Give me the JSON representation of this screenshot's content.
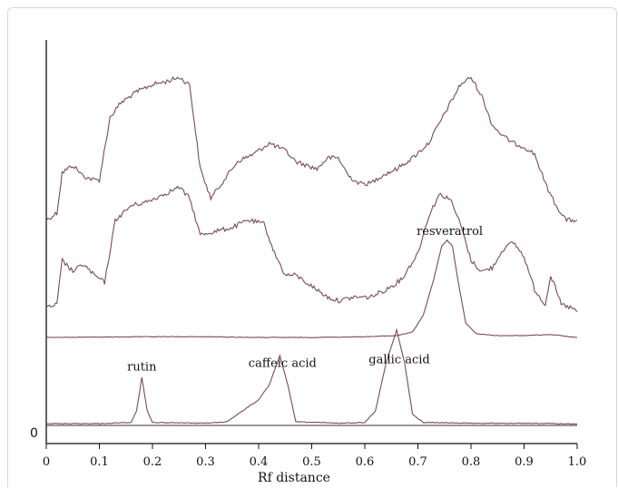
{
  "chart_data": {
    "type": "line",
    "xlabel": "Rf distance",
    "ylabel": "",
    "xlim": [
      0,
      1.0
    ],
    "x_ticks": [
      "0",
      "0.1",
      "0.2",
      "0.3",
      "0.4",
      "0.5",
      "0.6",
      "0.7",
      "0.8",
      "0.9",
      "1.0"
    ],
    "y_origin_label": "0",
    "grid": false,
    "line_color": "#7a4a58",
    "series": [
      {
        "points": [
          [
            0.0,
            0.56
          ],
          [
            0.02,
            0.58
          ],
          [
            0.03,
            0.69
          ],
          [
            0.05,
            0.71
          ],
          [
            0.07,
            0.68
          ],
          [
            0.09,
            0.67
          ],
          [
            0.1,
            0.67
          ],
          [
            0.12,
            0.84
          ],
          [
            0.14,
            0.88
          ],
          [
            0.17,
            0.91
          ],
          [
            0.2,
            0.93
          ],
          [
            0.23,
            0.94
          ],
          [
            0.25,
            0.95
          ],
          [
            0.27,
            0.93
          ],
          [
            0.29,
            0.7
          ],
          [
            0.31,
            0.62
          ],
          [
            0.33,
            0.66
          ],
          [
            0.36,
            0.72
          ],
          [
            0.39,
            0.74
          ],
          [
            0.42,
            0.77
          ],
          [
            0.45,
            0.75
          ],
          [
            0.47,
            0.72
          ],
          [
            0.49,
            0.71
          ],
          [
            0.51,
            0.7
          ],
          [
            0.53,
            0.73
          ],
          [
            0.55,
            0.73
          ],
          [
            0.57,
            0.68
          ],
          [
            0.59,
            0.66
          ],
          [
            0.61,
            0.66
          ],
          [
            0.63,
            0.68
          ],
          [
            0.66,
            0.7
          ],
          [
            0.69,
            0.73
          ],
          [
            0.72,
            0.77
          ],
          [
            0.75,
            0.85
          ],
          [
            0.78,
            0.93
          ],
          [
            0.8,
            0.95
          ],
          [
            0.82,
            0.9
          ],
          [
            0.84,
            0.82
          ],
          [
            0.86,
            0.79
          ],
          [
            0.88,
            0.77
          ],
          [
            0.9,
            0.76
          ],
          [
            0.92,
            0.74
          ],
          [
            0.94,
            0.66
          ],
          [
            0.96,
            0.6
          ],
          [
            0.98,
            0.56
          ],
          [
            1.0,
            0.56
          ]
        ]
      },
      {
        "points": [
          [
            0.0,
            0.32
          ],
          [
            0.02,
            0.33
          ],
          [
            0.03,
            0.45
          ],
          [
            0.05,
            0.42
          ],
          [
            0.07,
            0.44
          ],
          [
            0.09,
            0.41
          ],
          [
            0.11,
            0.39
          ],
          [
            0.13,
            0.56
          ],
          [
            0.16,
            0.6
          ],
          [
            0.19,
            0.61
          ],
          [
            0.22,
            0.63
          ],
          [
            0.25,
            0.65
          ],
          [
            0.27,
            0.62
          ],
          [
            0.29,
            0.52
          ],
          [
            0.32,
            0.53
          ],
          [
            0.35,
            0.54
          ],
          [
            0.38,
            0.56
          ],
          [
            0.41,
            0.55
          ],
          [
            0.43,
            0.47
          ],
          [
            0.45,
            0.41
          ],
          [
            0.47,
            0.41
          ],
          [
            0.49,
            0.39
          ],
          [
            0.51,
            0.37
          ],
          [
            0.53,
            0.35
          ],
          [
            0.55,
            0.34
          ],
          [
            0.58,
            0.35
          ],
          [
            0.61,
            0.35
          ],
          [
            0.64,
            0.37
          ],
          [
            0.67,
            0.4
          ],
          [
            0.7,
            0.47
          ],
          [
            0.72,
            0.57
          ],
          [
            0.74,
            0.63
          ],
          [
            0.76,
            0.62
          ],
          [
            0.78,
            0.55
          ],
          [
            0.8,
            0.45
          ],
          [
            0.82,
            0.42
          ],
          [
            0.84,
            0.43
          ],
          [
            0.86,
            0.48
          ],
          [
            0.88,
            0.5
          ],
          [
            0.9,
            0.46
          ],
          [
            0.92,
            0.37
          ],
          [
            0.94,
            0.33
          ],
          [
            0.95,
            0.41
          ],
          [
            0.97,
            0.33
          ],
          [
            0.99,
            0.32
          ],
          [
            1.0,
            0.31
          ]
        ]
      },
      {
        "points": [
          [
            0.0,
            0.24
          ],
          [
            0.1,
            0.241
          ],
          [
            0.2,
            0.242
          ],
          [
            0.3,
            0.242
          ],
          [
            0.4,
            0.24
          ],
          [
            0.5,
            0.24
          ],
          [
            0.6,
            0.242
          ],
          [
            0.66,
            0.245
          ],
          [
            0.69,
            0.255
          ],
          [
            0.71,
            0.3
          ],
          [
            0.73,
            0.4
          ],
          [
            0.745,
            0.49
          ],
          [
            0.755,
            0.505
          ],
          [
            0.765,
            0.49
          ],
          [
            0.775,
            0.4
          ],
          [
            0.79,
            0.28
          ],
          [
            0.81,
            0.25
          ],
          [
            0.85,
            0.245
          ],
          [
            0.9,
            0.245
          ],
          [
            0.95,
            0.248
          ],
          [
            1.0,
            0.24
          ]
        ]
      },
      {
        "points": [
          [
            0.0,
            0.005
          ],
          [
            0.1,
            0.005
          ],
          [
            0.16,
            0.008
          ],
          [
            0.17,
            0.04
          ],
          [
            0.18,
            0.13
          ],
          [
            0.19,
            0.04
          ],
          [
            0.2,
            0.008
          ],
          [
            0.3,
            0.006
          ],
          [
            0.34,
            0.01
          ],
          [
            0.37,
            0.04
          ],
          [
            0.4,
            0.07
          ],
          [
            0.42,
            0.11
          ],
          [
            0.44,
            0.19
          ],
          [
            0.455,
            0.11
          ],
          [
            0.47,
            0.01
          ],
          [
            0.55,
            0.006
          ],
          [
            0.6,
            0.008
          ],
          [
            0.62,
            0.04
          ],
          [
            0.64,
            0.17
          ],
          [
            0.66,
            0.26
          ],
          [
            0.675,
            0.17
          ],
          [
            0.69,
            0.03
          ],
          [
            0.71,
            0.008
          ],
          [
            0.8,
            0.006
          ],
          [
            0.9,
            0.006
          ],
          [
            1.0,
            0.004
          ]
        ]
      }
    ],
    "annotations": [
      {
        "text": "resveratrol",
        "x": 0.76,
        "y": 0.52
      },
      {
        "text": "rutin",
        "x": 0.18,
        "y": 0.15
      },
      {
        "text": "caffeic acid",
        "x": 0.445,
        "y": 0.16
      },
      {
        "text": "gallic acid",
        "x": 0.665,
        "y": 0.17
      }
    ]
  }
}
